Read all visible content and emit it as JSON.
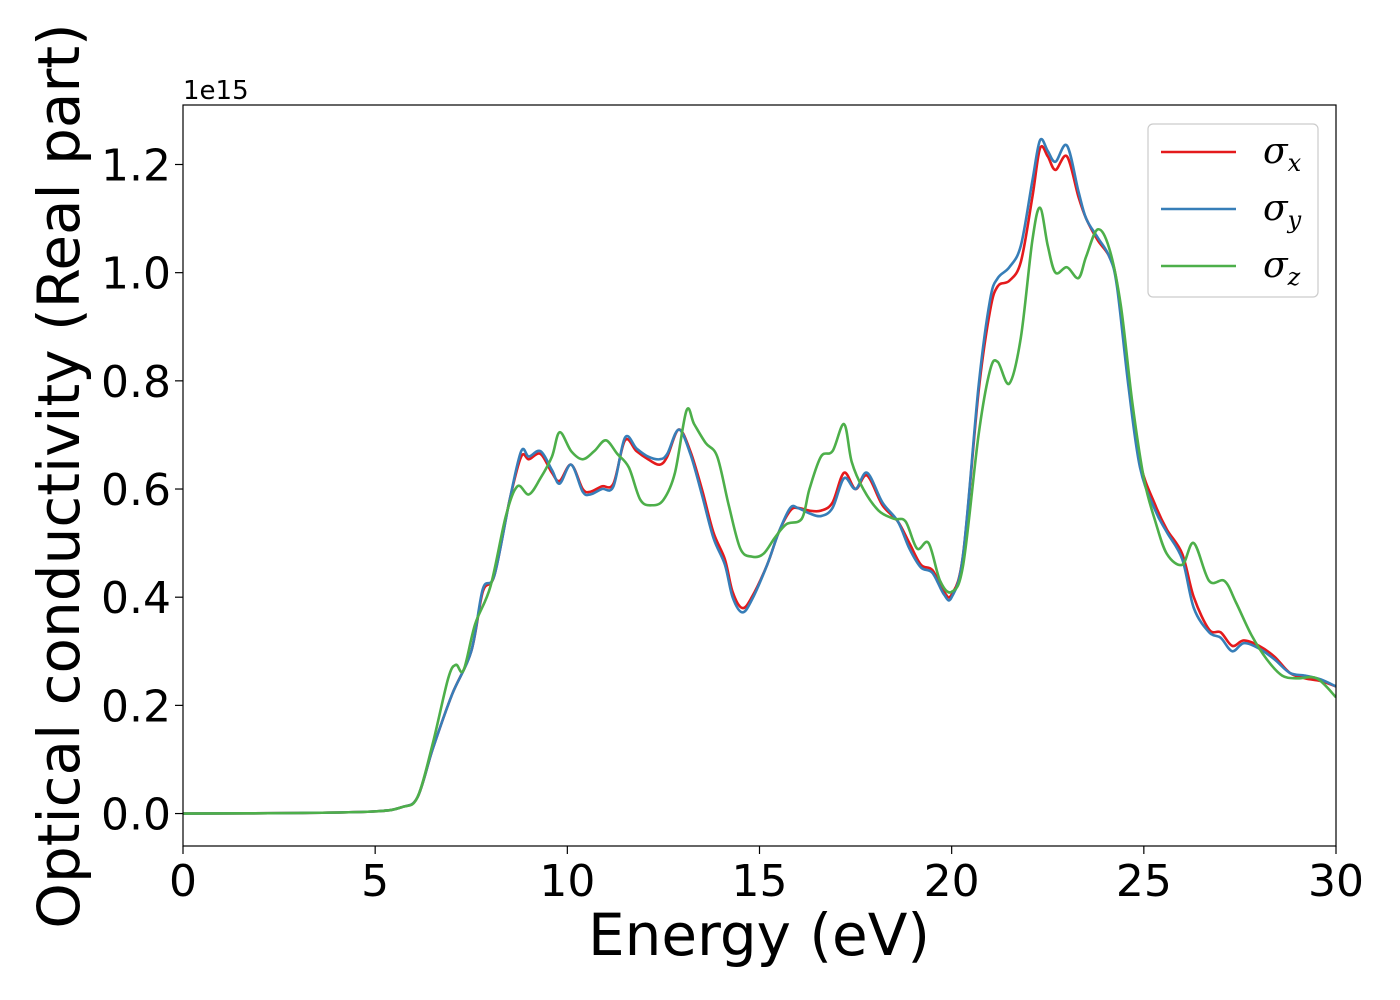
{
  "chart_data": {
    "type": "line",
    "xlabel": "Energy (eV)",
    "ylabel": "Optical conductivity (Real part)",
    "offset_text": "1e15",
    "xlim": [
      0,
      30
    ],
    "ylim": [
      -0.06,
      1.31
    ],
    "x_ticks": [
      0,
      5,
      10,
      15,
      20,
      25,
      30
    ],
    "x_tick_labels": [
      "0",
      "5",
      "10",
      "15",
      "20",
      "25",
      "30"
    ],
    "y_ticks": [
      0.0,
      0.2,
      0.4,
      0.6,
      0.8,
      1.0,
      1.2
    ],
    "y_tick_labels": [
      "0.0",
      "0.2",
      "0.4",
      "0.6",
      "0.8",
      "1.0",
      "1.2"
    ],
    "grid": false,
    "legend_position": "top-right",
    "colors": {
      "sigma_x": "#e41a1c",
      "sigma_y": "#377eb8",
      "sigma_z": "#4daf4a"
    },
    "series": [
      {
        "name": "σx",
        "symbol": "σ",
        "sub": "x",
        "color": "#e41a1c",
        "points": [
          [
            0,
            0
          ],
          [
            3,
            0.001
          ],
          [
            5,
            0.004
          ],
          [
            5.7,
            0.012
          ],
          [
            6.1,
            0.03
          ],
          [
            6.5,
            0.12
          ],
          [
            7,
            0.22
          ],
          [
            7.5,
            0.3
          ],
          [
            7.8,
            0.41
          ],
          [
            8.1,
            0.44
          ],
          [
            8.5,
            0.58
          ],
          [
            8.8,
            0.66
          ],
          [
            9,
            0.655
          ],
          [
            9.3,
            0.665
          ],
          [
            9.6,
            0.63
          ],
          [
            9.8,
            0.615
          ],
          [
            10.1,
            0.645
          ],
          [
            10.4,
            0.6
          ],
          [
            10.6,
            0.595
          ],
          [
            10.9,
            0.605
          ],
          [
            11.2,
            0.61
          ],
          [
            11.5,
            0.69
          ],
          [
            11.8,
            0.67
          ],
          [
            12.1,
            0.655
          ],
          [
            12.4,
            0.645
          ],
          [
            12.6,
            0.66
          ],
          [
            12.9,
            0.71
          ],
          [
            13.2,
            0.67
          ],
          [
            13.5,
            0.6
          ],
          [
            13.8,
            0.52
          ],
          [
            14.1,
            0.47
          ],
          [
            14.3,
            0.41
          ],
          [
            14.55,
            0.38
          ],
          [
            14.8,
            0.4
          ],
          [
            15.2,
            0.46
          ],
          [
            15.5,
            0.52
          ],
          [
            15.8,
            0.56
          ],
          [
            16,
            0.565
          ],
          [
            16.3,
            0.56
          ],
          [
            16.6,
            0.56
          ],
          [
            16.9,
            0.575
          ],
          [
            17.2,
            0.63
          ],
          [
            17.5,
            0.6
          ],
          [
            17.8,
            0.625
          ],
          [
            18.2,
            0.57
          ],
          [
            18.6,
            0.54
          ],
          [
            18.9,
            0.5
          ],
          [
            19.2,
            0.46
          ],
          [
            19.5,
            0.45
          ],
          [
            19.8,
            0.41
          ],
          [
            20,
            0.405
          ],
          [
            20.3,
            0.48
          ],
          [
            20.7,
            0.78
          ],
          [
            21,
            0.93
          ],
          [
            21.2,
            0.975
          ],
          [
            21.5,
            0.985
          ],
          [
            21.8,
            1.02
          ],
          [
            22.1,
            1.14
          ],
          [
            22.3,
            1.23
          ],
          [
            22.5,
            1.215
          ],
          [
            22.7,
            1.19
          ],
          [
            23,
            1.215
          ],
          [
            23.3,
            1.14
          ],
          [
            23.5,
            1.1
          ],
          [
            23.8,
            1.06
          ],
          [
            24.1,
            1.03
          ],
          [
            24.3,
            0.98
          ],
          [
            24.6,
            0.8
          ],
          [
            24.9,
            0.65
          ],
          [
            25.3,
            0.57
          ],
          [
            25.6,
            0.525
          ],
          [
            26,
            0.48
          ],
          [
            26.3,
            0.4
          ],
          [
            26.7,
            0.34
          ],
          [
            27,
            0.335
          ],
          [
            27.3,
            0.31
          ],
          [
            27.6,
            0.32
          ],
          [
            28,
            0.31
          ],
          [
            28.4,
            0.29
          ],
          [
            28.8,
            0.26
          ],
          [
            29.2,
            0.25
          ],
          [
            29.6,
            0.245
          ],
          [
            30,
            0.235
          ]
        ]
      },
      {
        "name": "σy",
        "symbol": "σ",
        "sub": "y",
        "color": "#377eb8",
        "points": [
          [
            0,
            0
          ],
          [
            3,
            0.001
          ],
          [
            5,
            0.004
          ],
          [
            5.7,
            0.012
          ],
          [
            6.1,
            0.03
          ],
          [
            6.5,
            0.12
          ],
          [
            7,
            0.22
          ],
          [
            7.5,
            0.3
          ],
          [
            7.8,
            0.415
          ],
          [
            8.1,
            0.44
          ],
          [
            8.5,
            0.58
          ],
          [
            8.8,
            0.67
          ],
          [
            9,
            0.66
          ],
          [
            9.3,
            0.67
          ],
          [
            9.6,
            0.635
          ],
          [
            9.8,
            0.61
          ],
          [
            10.1,
            0.645
          ],
          [
            10.4,
            0.595
          ],
          [
            10.6,
            0.59
          ],
          [
            10.9,
            0.6
          ],
          [
            11.2,
            0.605
          ],
          [
            11.5,
            0.695
          ],
          [
            11.8,
            0.675
          ],
          [
            12.1,
            0.66
          ],
          [
            12.4,
            0.655
          ],
          [
            12.6,
            0.665
          ],
          [
            12.9,
            0.71
          ],
          [
            13.2,
            0.665
          ],
          [
            13.5,
            0.59
          ],
          [
            13.8,
            0.51
          ],
          [
            14.1,
            0.46
          ],
          [
            14.3,
            0.4
          ],
          [
            14.55,
            0.372
          ],
          [
            14.8,
            0.395
          ],
          [
            15.2,
            0.46
          ],
          [
            15.5,
            0.52
          ],
          [
            15.8,
            0.565
          ],
          [
            16,
            0.565
          ],
          [
            16.3,
            0.555
          ],
          [
            16.6,
            0.55
          ],
          [
            16.9,
            0.565
          ],
          [
            17.2,
            0.62
          ],
          [
            17.5,
            0.6
          ],
          [
            17.8,
            0.63
          ],
          [
            18.2,
            0.575
          ],
          [
            18.6,
            0.54
          ],
          [
            18.9,
            0.49
          ],
          [
            19.2,
            0.455
          ],
          [
            19.5,
            0.445
          ],
          [
            19.8,
            0.405
          ],
          [
            20,
            0.4
          ],
          [
            20.3,
            0.48
          ],
          [
            20.7,
            0.79
          ],
          [
            21,
            0.95
          ],
          [
            21.2,
            0.99
          ],
          [
            21.5,
            1.01
          ],
          [
            21.8,
            1.05
          ],
          [
            22.1,
            1.17
          ],
          [
            22.3,
            1.245
          ],
          [
            22.5,
            1.225
          ],
          [
            22.7,
            1.205
          ],
          [
            23,
            1.235
          ],
          [
            23.3,
            1.15
          ],
          [
            23.5,
            1.1
          ],
          [
            23.8,
            1.065
          ],
          [
            24.1,
            1.03
          ],
          [
            24.3,
            0.975
          ],
          [
            24.6,
            0.79
          ],
          [
            24.9,
            0.64
          ],
          [
            25.3,
            0.56
          ],
          [
            25.6,
            0.52
          ],
          [
            26,
            0.47
          ],
          [
            26.3,
            0.38
          ],
          [
            26.7,
            0.335
          ],
          [
            27,
            0.325
          ],
          [
            27.3,
            0.3
          ],
          [
            27.6,
            0.315
          ],
          [
            28,
            0.305
          ],
          [
            28.4,
            0.285
          ],
          [
            28.8,
            0.26
          ],
          [
            29.2,
            0.255
          ],
          [
            29.6,
            0.248
          ],
          [
            30,
            0.235
          ]
        ]
      },
      {
        "name": "σz",
        "symbol": "σ",
        "sub": "z",
        "color": "#4daf4a",
        "points": [
          [
            0,
            0
          ],
          [
            3,
            0.001
          ],
          [
            5,
            0.004
          ],
          [
            5.7,
            0.012
          ],
          [
            6.1,
            0.03
          ],
          [
            6.5,
            0.13
          ],
          [
            6.9,
            0.25
          ],
          [
            7.1,
            0.275
          ],
          [
            7.3,
            0.265
          ],
          [
            7.6,
            0.35
          ],
          [
            8,
            0.42
          ],
          [
            8.4,
            0.55
          ],
          [
            8.7,
            0.605
          ],
          [
            9,
            0.59
          ],
          [
            9.3,
            0.62
          ],
          [
            9.6,
            0.66
          ],
          [
            9.8,
            0.705
          ],
          [
            10.1,
            0.67
          ],
          [
            10.4,
            0.655
          ],
          [
            10.7,
            0.67
          ],
          [
            11,
            0.69
          ],
          [
            11.3,
            0.665
          ],
          [
            11.6,
            0.64
          ],
          [
            11.9,
            0.58
          ],
          [
            12.2,
            0.57
          ],
          [
            12.5,
            0.58
          ],
          [
            12.8,
            0.63
          ],
          [
            13.1,
            0.745
          ],
          [
            13.3,
            0.72
          ],
          [
            13.6,
            0.685
          ],
          [
            13.9,
            0.66
          ],
          [
            14.2,
            0.57
          ],
          [
            14.5,
            0.49
          ],
          [
            14.8,
            0.475
          ],
          [
            15.1,
            0.48
          ],
          [
            15.4,
            0.51
          ],
          [
            15.7,
            0.535
          ],
          [
            16.1,
            0.545
          ],
          [
            16.3,
            0.6
          ],
          [
            16.6,
            0.66
          ],
          [
            16.9,
            0.67
          ],
          [
            17.2,
            0.72
          ],
          [
            17.4,
            0.65
          ],
          [
            17.7,
            0.6
          ],
          [
            18.1,
            0.56
          ],
          [
            18.5,
            0.545
          ],
          [
            18.8,
            0.54
          ],
          [
            19.1,
            0.49
          ],
          [
            19.4,
            0.5
          ],
          [
            19.7,
            0.43
          ],
          [
            20,
            0.41
          ],
          [
            20.3,
            0.46
          ],
          [
            20.7,
            0.7
          ],
          [
            21,
            0.82
          ],
          [
            21.2,
            0.835
          ],
          [
            21.5,
            0.795
          ],
          [
            21.8,
            0.88
          ],
          [
            22.1,
            1.06
          ],
          [
            22.3,
            1.12
          ],
          [
            22.5,
            1.05
          ],
          [
            22.7,
            1.0
          ],
          [
            23,
            1.01
          ],
          [
            23.3,
            0.99
          ],
          [
            23.5,
            1.03
          ],
          [
            23.8,
            1.08
          ],
          [
            24.1,
            1.045
          ],
          [
            24.4,
            0.94
          ],
          [
            24.7,
            0.76
          ],
          [
            25,
            0.62
          ],
          [
            25.3,
            0.54
          ],
          [
            25.6,
            0.48
          ],
          [
            26,
            0.46
          ],
          [
            26.3,
            0.5
          ],
          [
            26.7,
            0.43
          ],
          [
            27.1,
            0.43
          ],
          [
            27.4,
            0.39
          ],
          [
            27.8,
            0.33
          ],
          [
            28.2,
            0.285
          ],
          [
            28.6,
            0.255
          ],
          [
            29,
            0.25
          ],
          [
            29.5,
            0.25
          ],
          [
            30,
            0.215
          ]
        ]
      }
    ]
  }
}
